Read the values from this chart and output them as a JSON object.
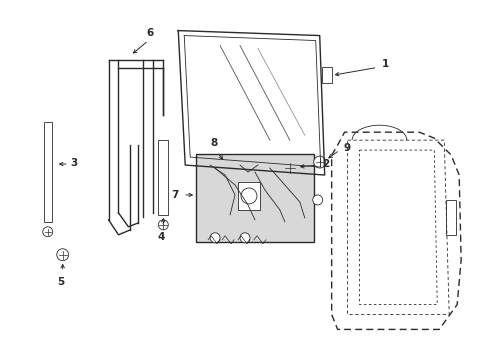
{
  "bg_color": "#ffffff",
  "line_color": "#2a2a2a",
  "box_fill": "#d8d8d8",
  "figsize": [
    4.89,
    3.6
  ],
  "dpi": 100,
  "lw_main": 1.0,
  "lw_thin": 0.6,
  "label_fs": 7.5
}
